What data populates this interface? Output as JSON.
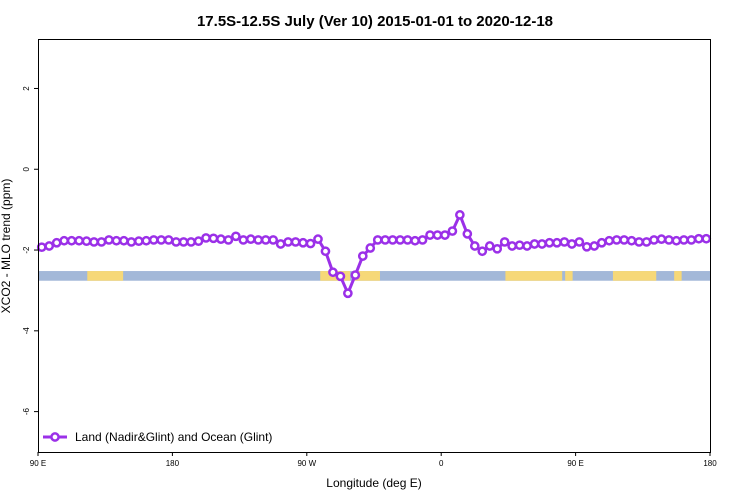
{
  "chart_data": {
    "type": "line",
    "title": "17.5S-12.5S July (Ver 10)   2015-01-01 to 2020-12-18",
    "xlabel": "Longitude (deg E)",
    "ylabel": "XCO2 - MLO trend (ppm)",
    "xlim": [
      90,
      540
    ],
    "ylim": [
      -7,
      3.2
    ],
    "x_ticks": [
      {
        "value": 90,
        "label": "90 E"
      },
      {
        "value": 180,
        "label": "180"
      },
      {
        "value": 270,
        "label": "90 W"
      },
      {
        "value": 360,
        "label": "0"
      },
      {
        "value": 450,
        "label": "90 E"
      },
      {
        "value": 540,
        "label": "180"
      }
    ],
    "y_ticks": [
      {
        "value": 2,
        "label": "2"
      },
      {
        "value": 0,
        "label": "0"
      },
      {
        "value": -2,
        "label": "-2"
      },
      {
        "value": -4,
        "label": "-4"
      },
      {
        "value": -6,
        "label": "-6"
      }
    ],
    "grid": false,
    "legend_position": "bottom-left",
    "series": [
      {
        "name": "Land (Nadir&Glint) and Ocean (Glint)",
        "color": "#9b30e8",
        "x": [
          92.5,
          97.5,
          102.5,
          107.5,
          112.5,
          117.5,
          122.5,
          127.5,
          132.5,
          137.5,
          142.5,
          147.5,
          152.5,
          157.5,
          162.5,
          167.5,
          172.5,
          177.5,
          182.5,
          187.5,
          192.5,
          197.5,
          202.5,
          207.5,
          212.5,
          217.5,
          222.5,
          227.5,
          232.5,
          237.5,
          242.5,
          247.5,
          252.5,
          257.5,
          262.5,
          267.5,
          272.5,
          277.5,
          282.5,
          287.5,
          292.5,
          297.5,
          302.5,
          307.5,
          312.5,
          317.5,
          322.5,
          327.5,
          332.5,
          337.5,
          342.5,
          347.5,
          352.5,
          357.5,
          362.5,
          367.5,
          372.5,
          377.5,
          382.5,
          387.5,
          392.5,
          397.5,
          402.5,
          407.5,
          412.5,
          417.5,
          422.5,
          427.5,
          432.5,
          437.5,
          442.5,
          447.5,
          452.5,
          457.5,
          462.5,
          467.5,
          472.5,
          477.5,
          482.5,
          487.5,
          492.5,
          497.5,
          502.5,
          507.5,
          512.5,
          517.5,
          522.5,
          527.5,
          532.5,
          537.5
        ],
        "y": [
          -1.93,
          -1.9,
          -1.82,
          -1.77,
          -1.77,
          -1.77,
          -1.78,
          -1.8,
          -1.8,
          -1.75,
          -1.77,
          -1.77,
          -1.8,
          -1.78,
          -1.77,
          -1.75,
          -1.75,
          -1.75,
          -1.8,
          -1.8,
          -1.8,
          -1.78,
          -1.7,
          -1.71,
          -1.73,
          -1.75,
          -1.66,
          -1.75,
          -1.73,
          -1.75,
          -1.75,
          -1.75,
          -1.85,
          -1.8,
          -1.8,
          -1.82,
          -1.84,
          -1.73,
          -2.03,
          -2.55,
          -2.65,
          -3.07,
          -2.62,
          -2.15,
          -1.95,
          -1.75,
          -1.75,
          -1.75,
          -1.75,
          -1.75,
          -1.77,
          -1.75,
          -1.63,
          -1.63,
          -1.63,
          -1.53,
          -1.13,
          -1.6,
          -1.9,
          -2.03,
          -1.9,
          -1.97,
          -1.8,
          -1.9,
          -1.88,
          -1.9,
          -1.85,
          -1.85,
          -1.82,
          -1.82,
          -1.8,
          -1.85,
          -1.8,
          -1.92,
          -1.9,
          -1.82,
          -1.77,
          -1.75,
          -1.75,
          -1.77,
          -1.8,
          -1.8,
          -1.75,
          -1.73,
          -1.75,
          -1.77,
          -1.75,
          -1.75,
          -1.72,
          -1.72
        ]
      }
    ],
    "surface_band": {
      "y_top": -2.52,
      "y_bottom": -2.76,
      "colors": {
        "ocean": "#a3b8d8",
        "land": "#f6d878"
      },
      "land_spans_lon": [
        [
          123,
          147
        ],
        [
          279,
          299
        ],
        [
          302,
          319
        ],
        [
          403,
          441
        ],
        [
          443,
          448
        ],
        [
          475,
          504
        ],
        [
          516,
          521
        ]
      ]
    }
  }
}
